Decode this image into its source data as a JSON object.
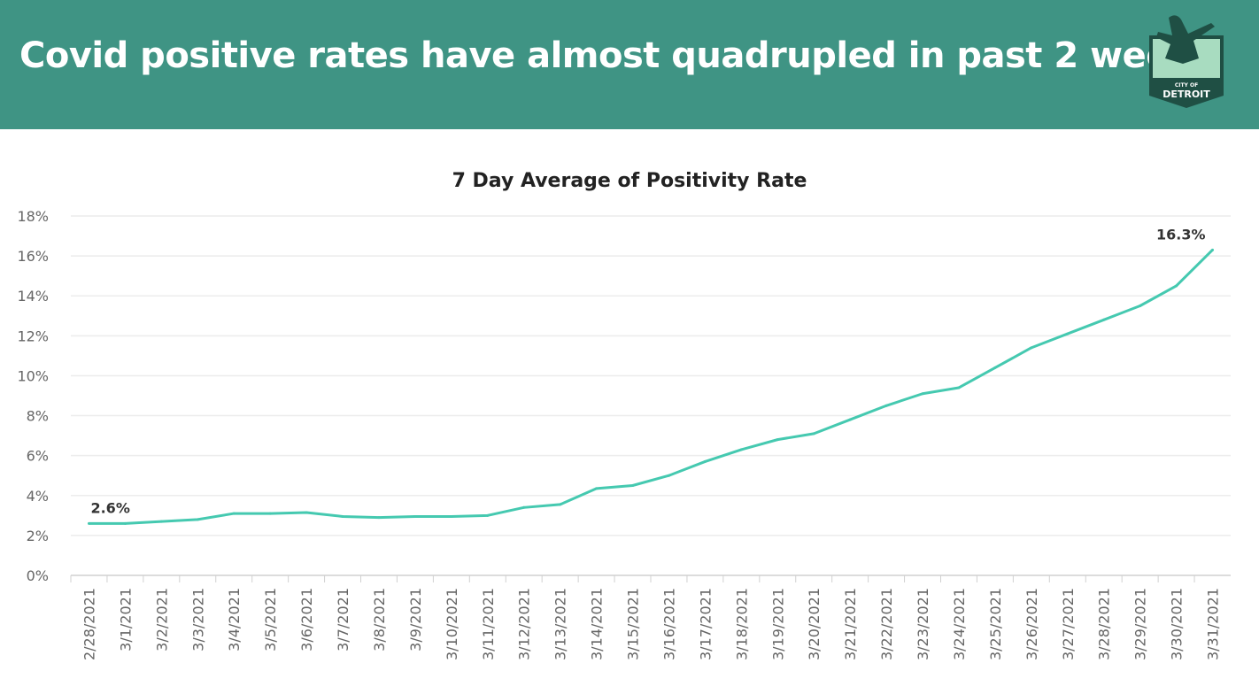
{
  "header": {
    "title": "Covid positive rates have almost quadrupled in past 2 weeks",
    "logo_text": "CITY OF DETROIT",
    "color": "#3f9484"
  },
  "chart_data": {
    "type": "line",
    "title": "7 Day Average of Positivity Rate",
    "xlabel": "",
    "ylabel": "",
    "ylim": [
      0,
      18
    ],
    "yticks": [
      "0%",
      "2%",
      "4%",
      "6%",
      "8%",
      "10%",
      "12%",
      "14%",
      "16%",
      "18%"
    ],
    "grid": true,
    "categories": [
      "2/28/2021",
      "3/1/2021",
      "3/2/2021",
      "3/3/2021",
      "3/4/2021",
      "3/5/2021",
      "3/6/2021",
      "3/7/2021",
      "3/8/2021",
      "3/9/2021",
      "3/10/2021",
      "3/11/2021",
      "3/12/2021",
      "3/13/2021",
      "3/14/2021",
      "3/15/2021",
      "3/16/2021",
      "3/17/2021",
      "3/18/2021",
      "3/19/2021",
      "3/20/2021",
      "3/21/2021",
      "3/22/2021",
      "3/23/2021",
      "3/24/2021",
      "3/25/2021",
      "3/26/2021",
      "3/27/2021",
      "3/28/2021",
      "3/29/2021",
      "3/30/2021",
      "3/31/2021"
    ],
    "series": [
      {
        "name": "Positivity Rate",
        "color": "#45c9b0",
        "values": [
          2.6,
          2.6,
          2.7,
          2.8,
          3.1,
          3.1,
          3.15,
          2.95,
          2.9,
          2.95,
          2.95,
          3.0,
          3.4,
          3.55,
          4.35,
          4.5,
          5.0,
          5.7,
          6.3,
          6.8,
          7.1,
          7.8,
          8.5,
          9.1,
          9.4,
          10.4,
          11.4,
          12.1,
          12.8,
          13.5,
          14.5,
          16.3
        ]
      }
    ],
    "data_labels": [
      {
        "index": 0,
        "text": "2.6%"
      },
      {
        "index": 31,
        "text": "16.3%"
      }
    ]
  }
}
